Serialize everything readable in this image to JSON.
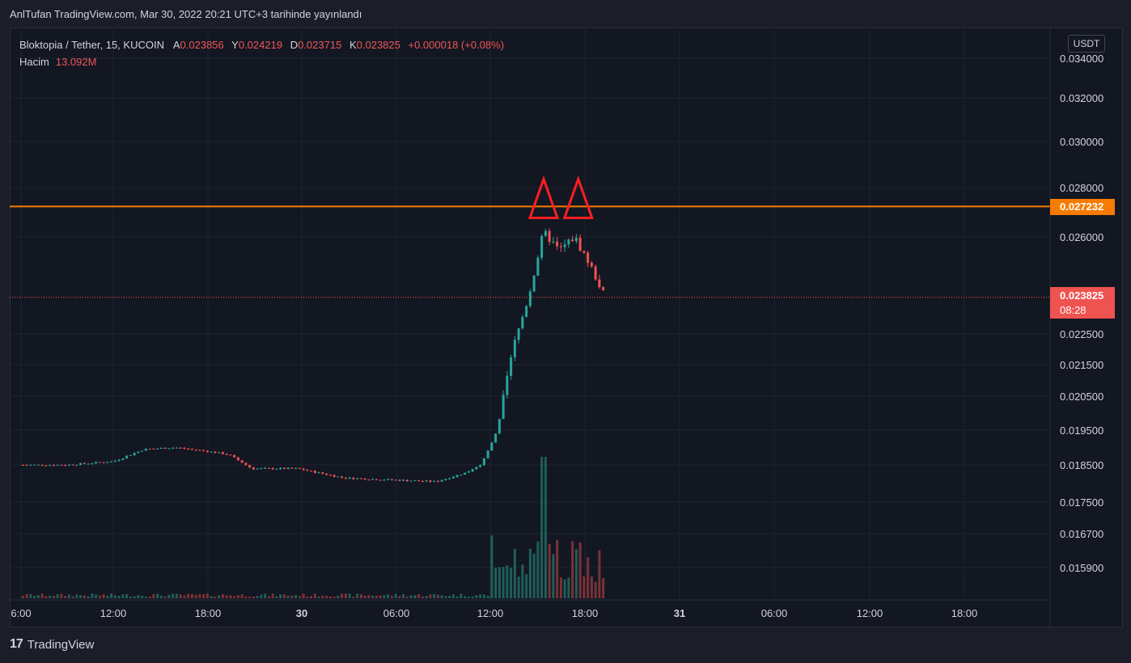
{
  "header": {
    "text": "AnlTufan TradingView.com, Mar 30, 2022 20:21 UTC+3 tarihinde yayınlandı"
  },
  "legend": {
    "symbol": "Bloktopia / Tether, 15, KUCOIN",
    "open_label": "A",
    "open": "0.023856",
    "high_label": "Y",
    "high": "0.024219",
    "low_label": "D",
    "low": "0.023715",
    "close_label": "K",
    "close": "0.023825",
    "change": "+0.000018 (+0.08%)",
    "volume_label": "Hacim",
    "volume": "13.092M"
  },
  "currency_button": "USDT",
  "price_tags": {
    "resistance": "0.027232",
    "last_price": "0.023825",
    "countdown": "08:28"
  },
  "footer": {
    "brand": "TradingView"
  },
  "colors": {
    "up": "#26a69a",
    "down": "#ef5350",
    "resistance": "#f57c00",
    "marker": "#ff1f1f",
    "background": "#131722"
  },
  "chart_data": {
    "type": "candlestick",
    "symbol": "Bloktopia / Tether",
    "interval": "15",
    "exchange": "KUCOIN",
    "y_ticks": [
      "0.034000",
      "0.032000",
      "0.030000",
      "0.028000",
      "0.026000",
      "0.022500",
      "0.021500",
      "0.020500",
      "0.019500",
      "0.018500",
      "0.017500",
      "0.016700",
      "0.015900"
    ],
    "x_ticks": [
      "6:00",
      "12:00",
      "18:00",
      "30",
      "06:00",
      "12:00",
      "18:00",
      "31",
      "06:00",
      "12:00",
      "18:00"
    ],
    "resistance_level": 0.027232,
    "last_price": 0.023825,
    "markers": [
      {
        "type": "triangle",
        "time": "Mar 30 16:00",
        "price": 0.02723
      },
      {
        "type": "triangle",
        "time": "Mar 30 18:15",
        "price": 0.02723
      }
    ],
    "series_approx": [
      {
        "time": "Mar 29 06:00",
        "close": 0.0185
      },
      {
        "time": "Mar 29 09:00",
        "close": 0.0185
      },
      {
        "time": "Mar 29 12:00",
        "close": 0.0186
      },
      {
        "time": "Mar 29 14:00",
        "close": 0.01895
      },
      {
        "time": "Mar 29 16:00",
        "close": 0.019
      },
      {
        "time": "Mar 29 18:00",
        "close": 0.0189
      },
      {
        "time": "Mar 29 19:30",
        "close": 0.0188
      },
      {
        "time": "Mar 29 21:00",
        "close": 0.0184
      },
      {
        "time": "Mar 30 00:00",
        "close": 0.0184
      },
      {
        "time": "Mar 30 03:00",
        "close": 0.01815
      },
      {
        "time": "Mar 30 06:00",
        "close": 0.0181
      },
      {
        "time": "Mar 30 09:00",
        "close": 0.01805
      },
      {
        "time": "Mar 30 11:00",
        "close": 0.0183
      },
      {
        "time": "Mar 30 12:00",
        "close": 0.01855
      },
      {
        "time": "Mar 30 13:00",
        "close": 0.0195
      },
      {
        "time": "Mar 30 14:00",
        "close": 0.022
      },
      {
        "time": "Mar 30 15:00",
        "close": 0.0238
      },
      {
        "time": "Mar 30 16:00",
        "close": 0.0262
      },
      {
        "time": "Mar 30 17:00",
        "close": 0.0255
      },
      {
        "time": "Mar 30 18:00",
        "close": 0.026
      },
      {
        "time": "Mar 30 19:00",
        "close": 0.025
      },
      {
        "time": "Mar 30 20:00",
        "close": 0.023825
      }
    ]
  }
}
